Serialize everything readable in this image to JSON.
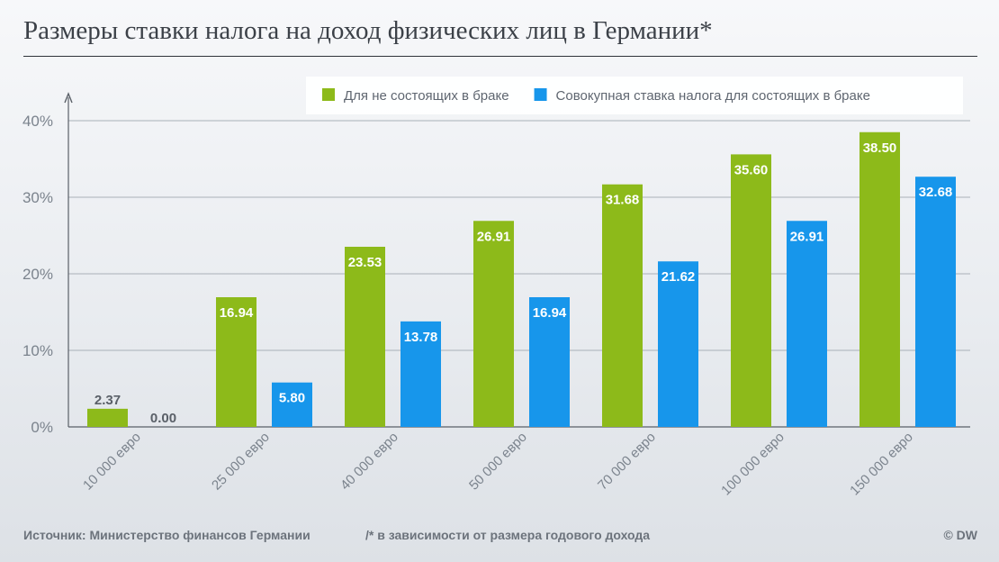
{
  "title": "Размеры ставки налога на доход физических лиц в Германии*",
  "footer": {
    "source": "Источник: Министерство финансов Германии",
    "note": "/* в зависимости от размера годового дохода",
    "credit": "© DW"
  },
  "chart_data": {
    "type": "bar",
    "categories": [
      "10 000 евро",
      "25 000 евро",
      "40 000 евро",
      "50 000 евро",
      "70 000 евро",
      "100 000 евро",
      "150 000 евро"
    ],
    "series": [
      {
        "name": "Для не состоящих в браке",
        "color": "#8dba1a",
        "values": [
          2.37,
          16.94,
          23.53,
          26.91,
          31.68,
          35.6,
          38.5
        ],
        "labels": [
          "2.37",
          "16.94",
          "23.53",
          "26.91",
          "31.68",
          "35.60",
          "38.50"
        ]
      },
      {
        "name": "Совокупная ставка налога для состоящих в браке",
        "color": "#1796eb",
        "values": [
          0.0,
          5.8,
          13.78,
          16.94,
          21.62,
          26.91,
          32.68
        ],
        "labels": [
          "0.00",
          "5.80",
          "13.78",
          "16.94",
          "21.62",
          "26.91",
          "32.68"
        ]
      }
    ],
    "yticks": [
      "0%",
      "10%",
      "20%",
      "30%",
      "40%"
    ],
    "ylim": [
      0,
      40
    ],
    "grid": true,
    "legend": "top-right"
  }
}
